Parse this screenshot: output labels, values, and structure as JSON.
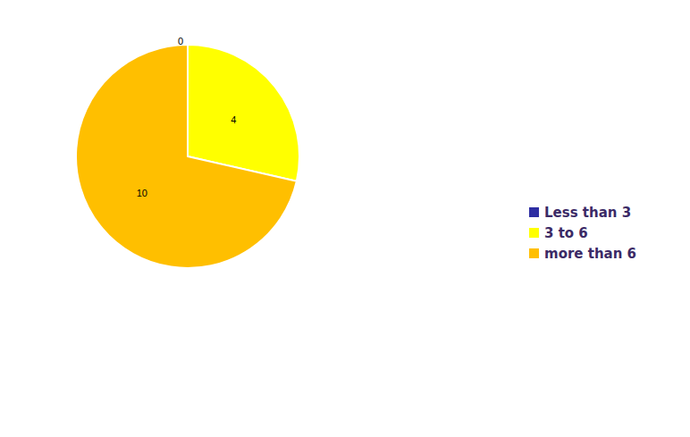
{
  "chart_data": {
    "type": "pie",
    "categories": [
      "Less than 3",
      "3 to 6",
      "more than 6"
    ],
    "values": [
      0,
      4,
      10
    ],
    "colors": [
      "#2e2ea3",
      "#ffff00",
      "#ffbf00"
    ],
    "data_labels": true,
    "legend": "right"
  }
}
